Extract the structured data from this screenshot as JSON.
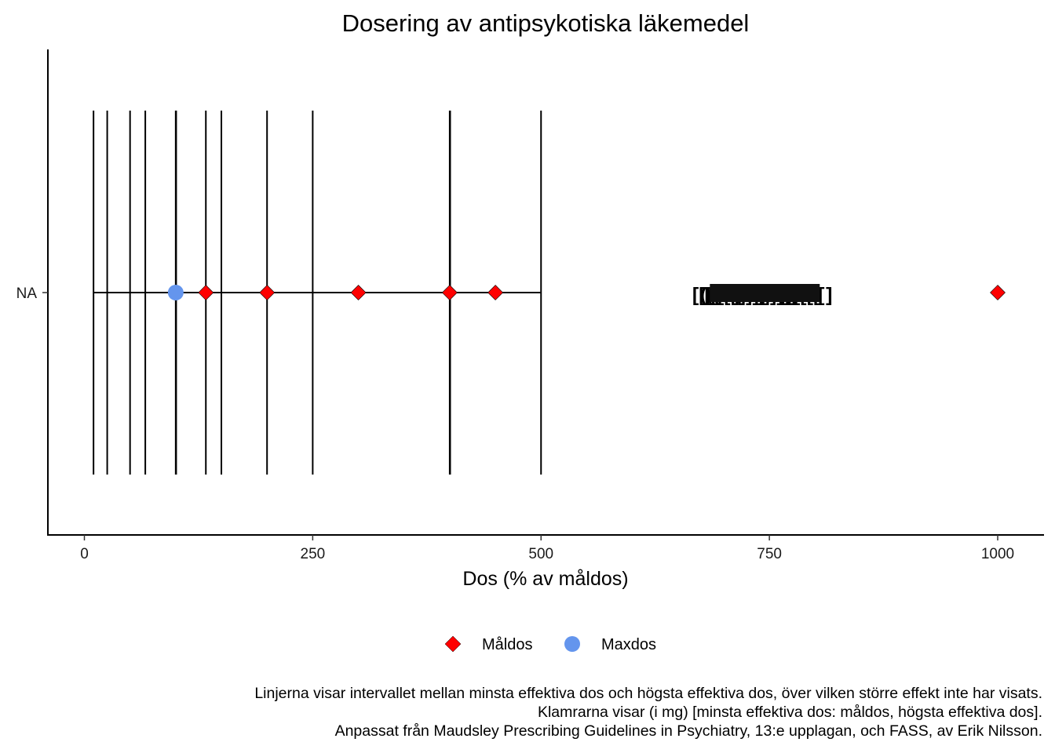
{
  "chart_data": {
    "type": "scatter",
    "title": "Dosering av antipsykotiska läkemedel",
    "xlabel": "Dos (% av måldos)",
    "ylabel": "",
    "xlim": [
      -40,
      1040
    ],
    "x_ticks": [
      0,
      250,
      500,
      750,
      1000
    ],
    "y_categories": [
      "NA"
    ],
    "grid": false,
    "legend_position": "bottom",
    "interval_line": {
      "from": 10,
      "to": 500
    },
    "vertical_lines": [
      10,
      25,
      50,
      66.7,
      100,
      100.5,
      133,
      150,
      200,
      250,
      400,
      400.5,
      500
    ],
    "series": [
      {
        "name": "Måldos",
        "shape": "diamond",
        "color": "#ff0000",
        "x": [
          133,
          200,
          300,
          400,
          450,
          1000
        ]
      },
      {
        "name": "Maxdos",
        "shape": "circle",
        "color": "#6495ed",
        "x": [
          100
        ]
      }
    ],
    "bracket_labels": {
      "center_x": 745,
      "texts": [
        "[[[",
        "(((",
        "[[[[[[",
        "]]]]]",
        "]]]]]]",
        "[[[[[[",
        "[",
        "]"
      ]
    },
    "caption": [
      "Linjerna visar intervallet mellan minsta effektiva dos och högsta effektiva dos, över vilken större effekt inte har visats.",
      "Klamrarna visar (i mg) [minsta effektiva dos: måldos, högsta effektiva dos].",
      "Anpassat från Maudsley Prescribing Guidelines in Psychiatry, 13:e upplagan, och FASS, av Erik Nilsson."
    ]
  }
}
